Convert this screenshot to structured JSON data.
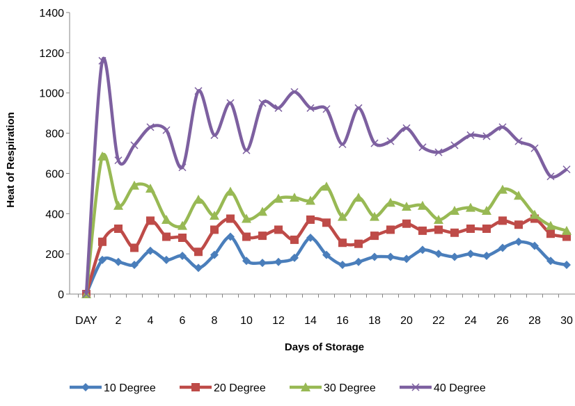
{
  "chart_data": {
    "type": "line",
    "title": "",
    "xlabel": "Days of Storage",
    "ylabel": "Heat of Respiration",
    "x": [
      0,
      1,
      2,
      3,
      4,
      5,
      6,
      7,
      8,
      9,
      10,
      11,
      12,
      13,
      14,
      15,
      16,
      17,
      18,
      19,
      20,
      21,
      22,
      23,
      24,
      25,
      26,
      27,
      28,
      29,
      30
    ],
    "x_tick_labels": [
      {
        "x": 0,
        "label": "DAY"
      },
      {
        "x": 2,
        "label": "2"
      },
      {
        "x": 4,
        "label": "4"
      },
      {
        "x": 6,
        "label": "6"
      },
      {
        "x": 8,
        "label": "8"
      },
      {
        "x": 10,
        "label": "10"
      },
      {
        "x": 12,
        "label": "12"
      },
      {
        "x": 14,
        "label": "14"
      },
      {
        "x": 16,
        "label": "16"
      },
      {
        "x": 18,
        "label": "18"
      },
      {
        "x": 20,
        "label": "20"
      },
      {
        "x": 22,
        "label": "22"
      },
      {
        "x": 24,
        "label": "24"
      },
      {
        "x": 26,
        "label": "26"
      },
      {
        "x": 28,
        "label": "28"
      },
      {
        "x": 30,
        "label": "30"
      }
    ],
    "ylim": [
      0,
      1400
    ],
    "y_ticks": [
      0,
      200,
      400,
      600,
      800,
      1000,
      1200,
      1400
    ],
    "grid": false,
    "legend_position": "bottom",
    "series": [
      {
        "name": "10 Degree",
        "color": "#4a7ebb",
        "marker": "diamond",
        "values": [
          0,
          170,
          160,
          145,
          215,
          170,
          190,
          130,
          195,
          285,
          165,
          155,
          160,
          180,
          280,
          195,
          145,
          160,
          185,
          185,
          175,
          220,
          200,
          185,
          200,
          190,
          230,
          260,
          240,
          165,
          145
        ]
      },
      {
        "name": "20 Degree",
        "color": "#be4b48",
        "marker": "square",
        "values": [
          0,
          260,
          325,
          230,
          365,
          285,
          280,
          210,
          320,
          375,
          285,
          290,
          320,
          270,
          370,
          355,
          255,
          250,
          290,
          320,
          350,
          315,
          320,
          305,
          325,
          325,
          365,
          345,
          375,
          300,
          285
        ]
      },
      {
        "name": "30 Degree",
        "color": "#98b954",
        "marker": "triangle",
        "values": [
          0,
          685,
          440,
          540,
          525,
          370,
          340,
          470,
          390,
          510,
          375,
          410,
          475,
          480,
          465,
          535,
          385,
          480,
          385,
          455,
          435,
          440,
          370,
          415,
          430,
          415,
          520,
          490,
          395,
          340,
          315
        ]
      },
      {
        "name": "40 Degree",
        "color": "#7d60a0",
        "marker": "x",
        "values": [
          0,
          1160,
          665,
          740,
          830,
          815,
          630,
          1010,
          790,
          950,
          715,
          950,
          925,
          1005,
          925,
          920,
          745,
          925,
          750,
          760,
          825,
          730,
          705,
          740,
          790,
          785,
          830,
          760,
          725,
          585,
          620
        ]
      }
    ]
  }
}
